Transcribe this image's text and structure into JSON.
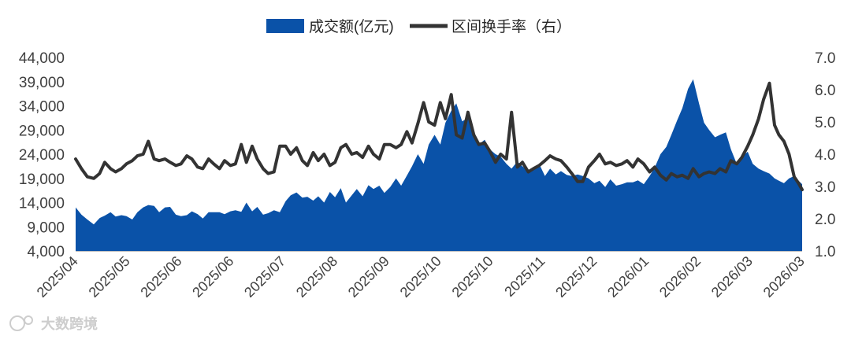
{
  "chart_data": {
    "type": "area+line",
    "legend": {
      "placement": "top-center",
      "area_label": "成交额(亿元)",
      "line_label": "区间换手率（右）"
    },
    "colors": {
      "area": "#0a52a8",
      "line": "#333333",
      "axis": "#bfbfbf",
      "text": "#404040"
    },
    "y_left": {
      "min": 4000,
      "max": 44000,
      "ticks": [
        "44,000",
        "39,000",
        "34,000",
        "29,000",
        "24,000",
        "19,000",
        "14,000",
        "9,000",
        "4,000"
      ]
    },
    "y_right": {
      "min": 1.0,
      "max": 7.0,
      "ticks": [
        "7.0",
        "6.0",
        "5.0",
        "4.0",
        "3.0",
        "2.0",
        "1.0"
      ]
    },
    "x_labels": [
      "2025/04",
      "2025/05",
      "2025/06",
      "2025/06",
      "2025/07",
      "2025/08",
      "2025/09",
      "2025/10",
      "2025/10",
      "2025/11",
      "2025/12",
      "2026/01",
      "2026/02",
      "2026/03",
      "2026/03"
    ],
    "x_range": [
      0,
      100
    ],
    "series": [
      {
        "name": "成交额(亿元)",
        "kind": "area",
        "axis": "left",
        "points": [
          [
            0,
            13000
          ],
          [
            0.8,
            11500
          ],
          [
            1.6,
            10500
          ],
          [
            2.5,
            9500
          ],
          [
            3.3,
            10800
          ],
          [
            4,
            11300
          ],
          [
            4.8,
            12000
          ],
          [
            5.5,
            11100
          ],
          [
            6.3,
            11400
          ],
          [
            7,
            11200
          ],
          [
            7.8,
            10500
          ],
          [
            8.5,
            12000
          ],
          [
            9.3,
            13000
          ],
          [
            10,
            13500
          ],
          [
            10.8,
            13300
          ],
          [
            11.5,
            12000
          ],
          [
            12.3,
            13000
          ],
          [
            13,
            13100
          ],
          [
            13.8,
            11500
          ],
          [
            14.5,
            11200
          ],
          [
            15.3,
            11400
          ],
          [
            16,
            12200
          ],
          [
            16.8,
            11600
          ],
          [
            17.5,
            10700
          ],
          [
            18.3,
            12000
          ],
          [
            19,
            12000
          ],
          [
            19.8,
            12000
          ],
          [
            20.5,
            11600
          ],
          [
            21.3,
            12200
          ],
          [
            22,
            12400
          ],
          [
            22.8,
            12100
          ],
          [
            23.5,
            14000
          ],
          [
            24.3,
            12200
          ],
          [
            25,
            13100
          ],
          [
            25.8,
            11500
          ],
          [
            26.5,
            11800
          ],
          [
            27.3,
            12400
          ],
          [
            28.1,
            12000
          ],
          [
            28.9,
            14300
          ],
          [
            29.6,
            15500
          ],
          [
            30.4,
            16100
          ],
          [
            31.2,
            15000
          ],
          [
            31.9,
            15200
          ],
          [
            32.7,
            14400
          ],
          [
            33.4,
            15300
          ],
          [
            34.2,
            14000
          ],
          [
            35,
            16200
          ],
          [
            35.7,
            15100
          ],
          [
            36.5,
            17000
          ],
          [
            37.2,
            14000
          ],
          [
            38,
            15500
          ],
          [
            38.7,
            16800
          ],
          [
            39.5,
            15300
          ],
          [
            40.3,
            17600
          ],
          [
            41,
            16800
          ],
          [
            41.8,
            17500
          ],
          [
            42.5,
            16000
          ],
          [
            43.3,
            17200
          ],
          [
            44.1,
            19000
          ],
          [
            44.8,
            17500
          ],
          [
            45.6,
            19600
          ],
          [
            46.3,
            21500
          ],
          [
            47.1,
            24000
          ],
          [
            47.9,
            22000
          ],
          [
            48.6,
            26000
          ],
          [
            49.4,
            28000
          ],
          [
            50.2,
            26000
          ],
          [
            50.9,
            30500
          ],
          [
            51.7,
            33000
          ],
          [
            52.4,
            34500
          ],
          [
            53.2,
            30800
          ],
          [
            54,
            31500
          ],
          [
            54.8,
            28000
          ],
          [
            55.5,
            26000
          ],
          [
            56.3,
            27000
          ],
          [
            57,
            25000
          ],
          [
            57.8,
            24000
          ],
          [
            58.5,
            23500
          ],
          [
            59.3,
            22000
          ],
          [
            60,
            21000
          ],
          [
            60.8,
            22500
          ],
          [
            61.5,
            21500
          ],
          [
            62.3,
            20500
          ],
          [
            63,
            21000
          ],
          [
            63.8,
            22000
          ],
          [
            64.6,
            19500
          ],
          [
            65.3,
            21000
          ],
          [
            66.1,
            19800
          ],
          [
            66.8,
            20500
          ],
          [
            67.6,
            19700
          ],
          [
            68.3,
            19500
          ],
          [
            69.1,
            19800
          ],
          [
            69.8,
            19500
          ],
          [
            70.6,
            19000
          ],
          [
            71.4,
            18000
          ],
          [
            72.1,
            18500
          ],
          [
            72.9,
            17200
          ],
          [
            73.6,
            18800
          ],
          [
            74.4,
            17500
          ],
          [
            75.2,
            17800
          ],
          [
            75.9,
            18200
          ],
          [
            76.7,
            18200
          ],
          [
            77.4,
            18600
          ],
          [
            78.2,
            17800
          ],
          [
            79,
            19500
          ],
          [
            79.7,
            21200
          ],
          [
            80.5,
            24000
          ],
          [
            81.3,
            25500
          ],
          [
            82,
            28000
          ],
          [
            82.8,
            31000
          ],
          [
            83.5,
            33500
          ],
          [
            84.3,
            37500
          ],
          [
            85,
            39500
          ],
          [
            85.8,
            34500
          ],
          [
            86.5,
            30500
          ],
          [
            87.2,
            29000
          ],
          [
            88,
            27500
          ],
          [
            88.7,
            28000
          ],
          [
            89.5,
            28500
          ],
          [
            90.2,
            25000
          ],
          [
            91,
            22000
          ],
          [
            91.7,
            23500
          ],
          [
            92.5,
            24500
          ],
          [
            93.2,
            22000
          ],
          [
            94,
            21000
          ],
          [
            94.7,
            20500
          ],
          [
            95.5,
            20000
          ],
          [
            96.2,
            19000
          ],
          [
            96.8,
            18500
          ],
          [
            97.5,
            18000
          ],
          [
            98.2,
            19000
          ],
          [
            98.9,
            19500
          ],
          [
            99.5,
            18500
          ],
          [
            100,
            17800
          ]
        ]
      },
      {
        "name": "区间换手率（右）",
        "kind": "line",
        "axis": "right",
        "points": [
          [
            0,
            3.85
          ],
          [
            0.8,
            3.55
          ],
          [
            1.6,
            3.3
          ],
          [
            2.5,
            3.25
          ],
          [
            3.3,
            3.4
          ],
          [
            4,
            3.75
          ],
          [
            4.8,
            3.55
          ],
          [
            5.5,
            3.45
          ],
          [
            6.3,
            3.55
          ],
          [
            7,
            3.7
          ],
          [
            7.8,
            3.8
          ],
          [
            8.5,
            3.95
          ],
          [
            9.3,
            4.0
          ],
          [
            10,
            4.4
          ],
          [
            10.8,
            3.85
          ],
          [
            11.5,
            3.8
          ],
          [
            12.3,
            3.85
          ],
          [
            13,
            3.75
          ],
          [
            13.8,
            3.65
          ],
          [
            14.5,
            3.7
          ],
          [
            15.3,
            3.95
          ],
          [
            16,
            3.85
          ],
          [
            16.8,
            3.6
          ],
          [
            17.5,
            3.55
          ],
          [
            18.3,
            3.85
          ],
          [
            19,
            3.7
          ],
          [
            19.8,
            3.55
          ],
          [
            20.5,
            3.8
          ],
          [
            21.3,
            3.65
          ],
          [
            22,
            3.7
          ],
          [
            22.8,
            4.3
          ],
          [
            23.5,
            3.75
          ],
          [
            24.3,
            4.25
          ],
          [
            25,
            3.85
          ],
          [
            25.8,
            3.55
          ],
          [
            26.5,
            3.4
          ],
          [
            27.3,
            3.45
          ],
          [
            28.1,
            4.25
          ],
          [
            28.9,
            4.25
          ],
          [
            29.6,
            4.0
          ],
          [
            30.4,
            4.2
          ],
          [
            31.2,
            3.8
          ],
          [
            31.9,
            3.65
          ],
          [
            32.7,
            4.05
          ],
          [
            33.4,
            3.8
          ],
          [
            34.2,
            4.0
          ],
          [
            35,
            3.65
          ],
          [
            35.7,
            3.75
          ],
          [
            36.5,
            4.2
          ],
          [
            37.2,
            4.3
          ],
          [
            38,
            4.0
          ],
          [
            38.7,
            4.05
          ],
          [
            39.5,
            3.9
          ],
          [
            40.3,
            4.25
          ],
          [
            41,
            4.0
          ],
          [
            41.8,
            3.85
          ],
          [
            42.5,
            4.3
          ],
          [
            43.3,
            4.3
          ],
          [
            44.1,
            4.2
          ],
          [
            44.8,
            4.3
          ],
          [
            45.6,
            4.7
          ],
          [
            46.3,
            4.35
          ],
          [
            47.1,
            4.95
          ],
          [
            47.9,
            5.6
          ],
          [
            48.6,
            5.0
          ],
          [
            49.4,
            4.9
          ],
          [
            50.2,
            5.6
          ],
          [
            50.9,
            5.1
          ],
          [
            51.7,
            5.85
          ],
          [
            52.4,
            4.6
          ],
          [
            53.2,
            4.5
          ],
          [
            54,
            5.3
          ],
          [
            54.8,
            4.6
          ],
          [
            55.5,
            4.3
          ],
          [
            56.3,
            4.35
          ],
          [
            57,
            4.1
          ],
          [
            57.8,
            3.75
          ],
          [
            58.5,
            4.0
          ],
          [
            59.3,
            3.85
          ],
          [
            60,
            5.3
          ],
          [
            60.8,
            3.6
          ],
          [
            61.5,
            3.75
          ],
          [
            62.3,
            3.45
          ],
          [
            63,
            3.55
          ],
          [
            63.8,
            3.65
          ],
          [
            64.6,
            3.8
          ],
          [
            65.3,
            3.95
          ],
          [
            66.1,
            3.85
          ],
          [
            66.8,
            3.8
          ],
          [
            67.6,
            3.6
          ],
          [
            68.3,
            3.4
          ],
          [
            69.1,
            3.15
          ],
          [
            69.8,
            3.15
          ],
          [
            70.6,
            3.6
          ],
          [
            71.4,
            3.8
          ],
          [
            72.1,
            4.0
          ],
          [
            72.9,
            3.7
          ],
          [
            73.6,
            3.75
          ],
          [
            74.4,
            3.65
          ],
          [
            75.2,
            3.7
          ],
          [
            75.9,
            3.8
          ],
          [
            76.7,
            3.6
          ],
          [
            77.4,
            3.85
          ],
          [
            78.2,
            3.7
          ],
          [
            79,
            3.45
          ],
          [
            79.7,
            3.6
          ],
          [
            80.5,
            3.35
          ],
          [
            81.3,
            3.2
          ],
          [
            82,
            3.4
          ],
          [
            82.8,
            3.3
          ],
          [
            83.5,
            3.35
          ],
          [
            84.3,
            3.25
          ],
          [
            85,
            3.55
          ],
          [
            85.8,
            3.3
          ],
          [
            86.5,
            3.4
          ],
          [
            87.2,
            3.45
          ],
          [
            88,
            3.4
          ],
          [
            88.7,
            3.55
          ],
          [
            89.5,
            3.45
          ],
          [
            90.2,
            3.8
          ],
          [
            91,
            3.7
          ],
          [
            91.7,
            3.9
          ],
          [
            92.5,
            4.25
          ],
          [
            93.2,
            4.6
          ],
          [
            94,
            5.1
          ],
          [
            94.7,
            5.7
          ],
          [
            95.5,
            6.2
          ],
          [
            96.2,
            4.9
          ],
          [
            96.8,
            4.6
          ],
          [
            97.5,
            4.4
          ],
          [
            98.2,
            4.0
          ],
          [
            98.9,
            3.3
          ],
          [
            99.5,
            3.1
          ],
          [
            100,
            2.9
          ]
        ]
      }
    ],
    "watermark": "大数跨境"
  }
}
